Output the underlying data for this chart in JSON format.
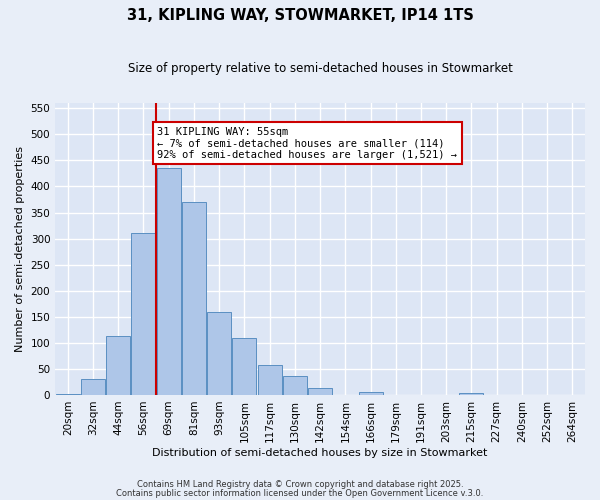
{
  "title": "31, KIPLING WAY, STOWMARKET, IP14 1TS",
  "subtitle": "Size of property relative to semi-detached houses in Stowmarket",
  "xlabel": "Distribution of semi-detached houses by size in Stowmarket",
  "ylabel": "Number of semi-detached properties",
  "categories": [
    "20sqm",
    "32sqm",
    "44sqm",
    "56sqm",
    "69sqm",
    "81sqm",
    "93sqm",
    "105sqm",
    "117sqm",
    "130sqm",
    "142sqm",
    "154sqm",
    "166sqm",
    "179sqm",
    "191sqm",
    "203sqm",
    "215sqm",
    "227sqm",
    "240sqm",
    "252sqm",
    "264sqm"
  ],
  "values": [
    2,
    30,
    114,
    311,
    435,
    370,
    160,
    110,
    57,
    36,
    14,
    0,
    5,
    0,
    0,
    0,
    3,
    0,
    0,
    0,
    0
  ],
  "bar_color": "#aec6e8",
  "bar_edge_color": "#5a8fc2",
  "background_color": "#dde6f5",
  "fig_background_color": "#e8eef8",
  "grid_color": "#ffffff",
  "vline_x": 3.5,
  "vline_color": "#cc0000",
  "annotation_text": "31 KIPLING WAY: 55sqm\n← 7% of semi-detached houses are smaller (114)\n92% of semi-detached houses are larger (1,521) →",
  "annotation_box_color": "#ffffff",
  "annotation_box_edge": "#cc0000",
  "ylim": [
    0,
    560
  ],
  "yticks": [
    0,
    50,
    100,
    150,
    200,
    250,
    300,
    350,
    400,
    450,
    500,
    550
  ],
  "title_fontsize": 10.5,
  "subtitle_fontsize": 8.5,
  "xlabel_fontsize": 8,
  "ylabel_fontsize": 8,
  "tick_fontsize": 7.5,
  "annotation_fontsize": 7.5,
  "footer1": "Contains HM Land Registry data © Crown copyright and database right 2025.",
  "footer2": "Contains public sector information licensed under the Open Government Licence v.3.0."
}
